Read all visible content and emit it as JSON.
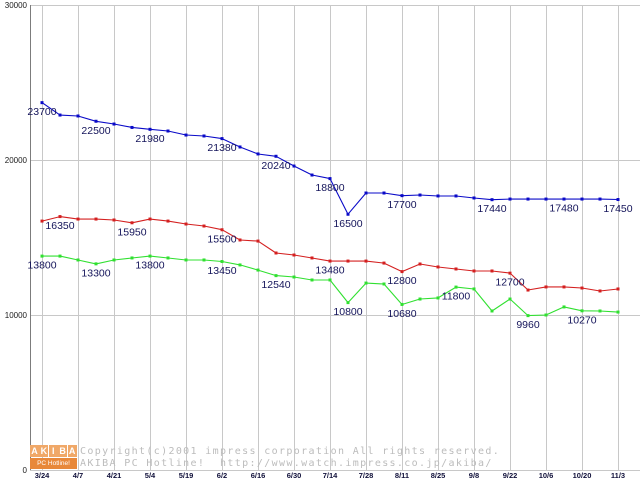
{
  "chart_data": {
    "type": "line",
    "categories": [
      "3/24",
      "",
      "4/7",
      "",
      "4/21",
      "",
      "5/4",
      "",
      "5/19",
      "",
      "6/2",
      "",
      "6/16",
      "",
      "6/30",
      "",
      "7/14",
      "",
      "7/28",
      "",
      "8/11",
      "",
      "8/25",
      "",
      "9/8",
      "",
      "9/22",
      "",
      "10/6",
      "",
      "10/20",
      "",
      "11/3"
    ],
    "ylim": [
      0,
      30000
    ],
    "yticks": [
      0,
      10000,
      20000,
      30000
    ],
    "grid": true,
    "legend": "none",
    "series": [
      {
        "color": "#0a0ac8",
        "values": [
          23700,
          22900,
          22840,
          22500,
          22320,
          22100,
          21980,
          21870,
          21610,
          21550,
          21380,
          20840,
          20390,
          20240,
          19610,
          19030,
          18800,
          16500,
          17870,
          17870,
          17700,
          17740,
          17680,
          17680,
          17550,
          17440,
          17480,
          17480,
          17480,
          17480,
          17480,
          17480,
          17450
        ],
        "point_labels": [
          "23700",
          "",
          "",
          "22500",
          "",
          "",
          "21980",
          "",
          "",
          "",
          "21380",
          "",
          "",
          "20240",
          "",
          "",
          "18800",
          "16500",
          "",
          "",
          "17700",
          "",
          "",
          "",
          "",
          "17440",
          "",
          "",
          "",
          "17480",
          "",
          "",
          "17450"
        ]
      },
      {
        "color": "#d42020",
        "values": [
          16060,
          16350,
          16190,
          16190,
          16130,
          15950,
          16190,
          16060,
          15870,
          15740,
          15500,
          14840,
          14770,
          14000,
          13870,
          13680,
          13480,
          13480,
          13480,
          13350,
          12800,
          13290,
          13100,
          12970,
          12840,
          12840,
          12700,
          11610,
          11810,
          11810,
          11740,
          11550,
          11680
        ],
        "point_labels": [
          "",
          "16350",
          "",
          "",
          "",
          "15950",
          "",
          "",
          "",
          "",
          "15500",
          "",
          "",
          "",
          "",
          "",
          "13480",
          "",
          "",
          "",
          "12800",
          "",
          "",
          "",
          "",
          "",
          "12700",
          "",
          "",
          "",
          "",
          "",
          ""
        ]
      },
      {
        "color": "#30e030",
        "values": [
          13800,
          13800,
          13550,
          13300,
          13550,
          13680,
          13800,
          13680,
          13550,
          13550,
          13450,
          13230,
          12900,
          12540,
          12450,
          12260,
          12260,
          10800,
          12060,
          12000,
          10680,
          11030,
          11100,
          11800,
          11680,
          10260,
          11030,
          9960,
          10000,
          10520,
          10270,
          10260,
          10190
        ],
        "point_labels": [
          "13800",
          "",
          "",
          "13300",
          "",
          "",
          "13800",
          "",
          "",
          "",
          "13450",
          "",
          "",
          "12540",
          "",
          "",
          "",
          "10800",
          "",
          "",
          "10680",
          "",
          "",
          "11800",
          "",
          "",
          "",
          "9960",
          "",
          "",
          "10270",
          "",
          ""
        ]
      }
    ]
  },
  "watermark": {
    "logo_top": "AKIBA",
    "logo_bottom": "PC Hotline!",
    "copyright": "Copyright(c)2001 impress corporation All rights reserved.",
    "site_line": "AKIBA PC Hotline!  http://www.watch.impress.co.jp/akiba/"
  }
}
